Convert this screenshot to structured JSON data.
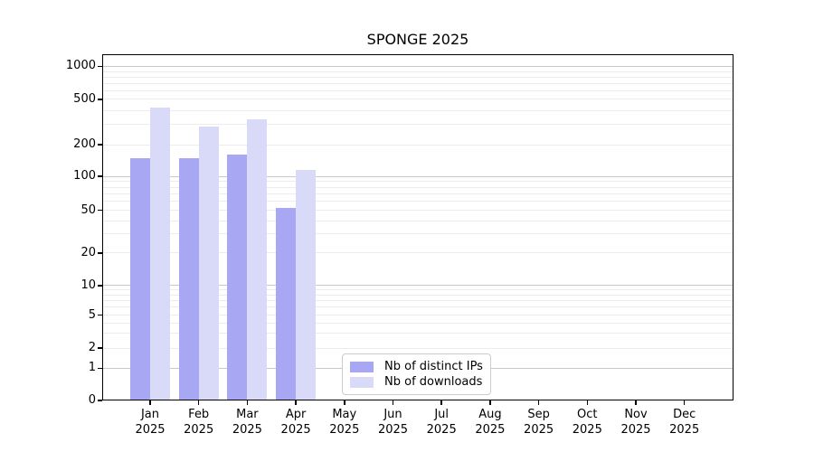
{
  "chart_data": {
    "type": "bar",
    "title": "SPONGE 2025",
    "xlabel": "",
    "ylabel": "",
    "yscale": "symlog",
    "ylim": [
      0,
      1290
    ],
    "grid": true,
    "legend_position": "lower center",
    "categories": [
      {
        "month": "Jan",
        "year": "2025"
      },
      {
        "month": "Feb",
        "year": "2025"
      },
      {
        "month": "Mar",
        "year": "2025"
      },
      {
        "month": "Apr",
        "year": "2025"
      },
      {
        "month": "May",
        "year": "2025"
      },
      {
        "month": "Jun",
        "year": "2025"
      },
      {
        "month": "Jul",
        "year": "2025"
      },
      {
        "month": "Aug",
        "year": "2025"
      },
      {
        "month": "Sep",
        "year": "2025"
      },
      {
        "month": "Oct",
        "year": "2025"
      },
      {
        "month": "Nov",
        "year": "2025"
      },
      {
        "month": "Dec",
        "year": "2025"
      }
    ],
    "series": [
      {
        "name": "Nb of distinct IPs",
        "color": "#a7a7f4",
        "values": [
          150,
          148,
          162,
          52,
          0,
          0,
          0,
          0,
          0,
          0,
          0,
          0
        ]
      },
      {
        "name": "Nb of downloads",
        "color": "#d9d9f8",
        "values": [
          425,
          290,
          335,
          115,
          0,
          0,
          0,
          0,
          0,
          0,
          0,
          0
        ]
      }
    ],
    "yticks": [
      0,
      1,
      2,
      5,
      10,
      20,
      50,
      100,
      200,
      500,
      1000
    ],
    "decade_gridline_values": [
      1,
      10,
      100,
      1000
    ],
    "minor_gridline_values": [
      3,
      4,
      6,
      7,
      8,
      9,
      30,
      40,
      60,
      70,
      80,
      90,
      300,
      400,
      600,
      700,
      800,
      900
    ],
    "colors": {
      "grid_decade": "#c9c9c9",
      "grid_minor": "#ececec",
      "axis": "#000000"
    }
  }
}
